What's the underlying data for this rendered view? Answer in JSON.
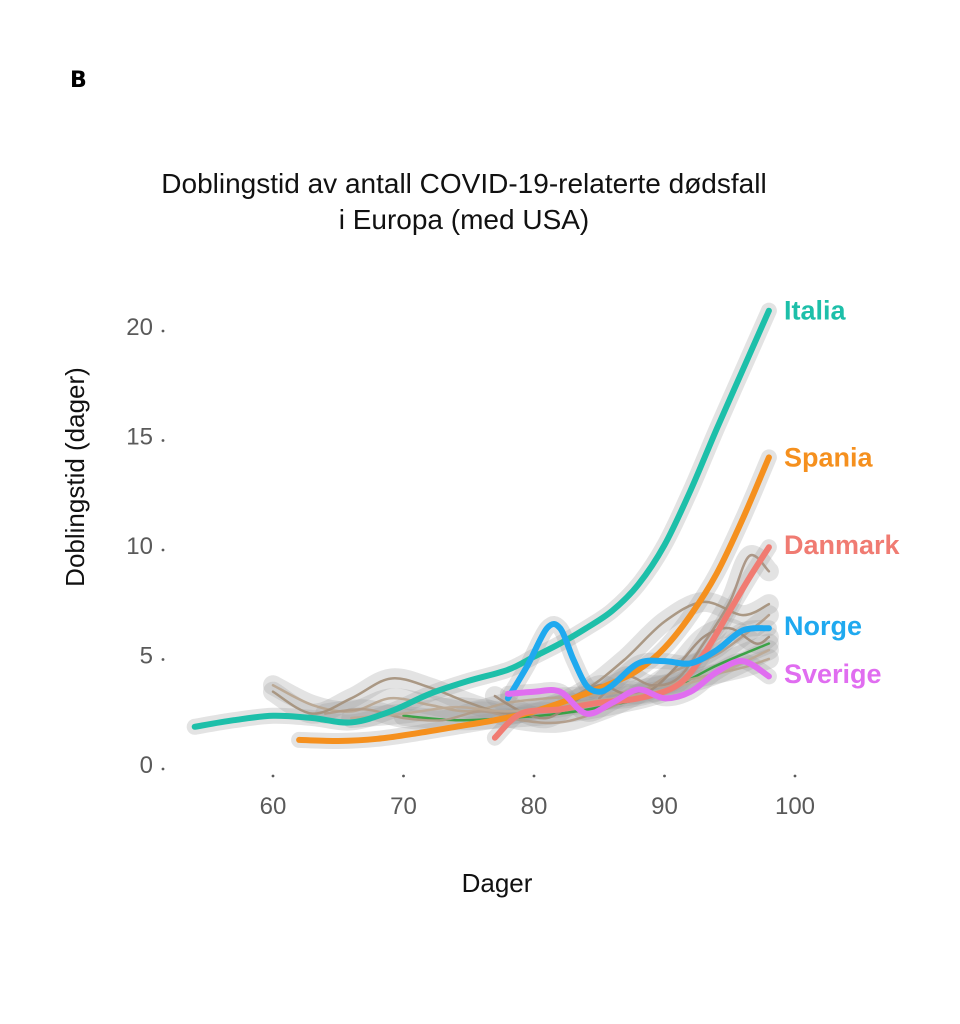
{
  "panel_label": "B",
  "chart_data": {
    "type": "line",
    "title_lines": [
      "Doblingstid av antall COVID-19-relaterte dødsfall",
      "i Europa (med USA)"
    ],
    "xlabel": "Dager",
    "ylabel": "Doblingstid (dager)",
    "xlim": [
      53,
      100
    ],
    "ylim": [
      0,
      21
    ],
    "x_ticks": [
      60,
      70,
      80,
      90,
      100
    ],
    "y_ticks": [
      0,
      5,
      10,
      15,
      20
    ],
    "x_tick_labels": [
      "60",
      "70",
      "80",
      "90",
      "100"
    ],
    "y_tick_labels": [
      "0",
      "5",
      "10",
      "15",
      "20"
    ],
    "grid": false,
    "series": [
      {
        "name": "Italia",
        "color": "#1dbfa9",
        "highlight": true,
        "x": [
          54,
          57,
          60,
          63,
          66,
          69,
          72,
          75,
          78,
          80,
          82,
          84,
          86,
          88,
          90,
          92,
          94,
          96,
          98
        ],
        "y": [
          1.7,
          2.0,
          2.2,
          2.1,
          1.9,
          2.4,
          3.2,
          3.8,
          4.3,
          4.9,
          5.5,
          6.2,
          7.0,
          8.2,
          10.0,
          12.5,
          15.3,
          18.0,
          20.7
        ]
      },
      {
        "name": "Spania",
        "color": "#f5901e",
        "highlight": true,
        "x": [
          62,
          65,
          68,
          71,
          74,
          77,
          80,
          83,
          86,
          88,
          90,
          92,
          94,
          96,
          98
        ],
        "y": [
          1.1,
          1.05,
          1.15,
          1.4,
          1.7,
          2.0,
          2.4,
          3.0,
          3.7,
          4.3,
          5.3,
          6.8,
          8.7,
          11.2,
          14.0
        ]
      },
      {
        "name": "Danmark",
        "color": "#f07b72",
        "highlight": true,
        "x": [
          77,
          79,
          82,
          85,
          88,
          91,
          93,
          95,
          96.5,
          98
        ],
        "y": [
          1.2,
          2.3,
          2.5,
          2.8,
          3.0,
          3.6,
          5.0,
          7.0,
          8.5,
          9.9
        ]
      },
      {
        "name": "Norge",
        "color": "#1fa9ef",
        "highlight": true,
        "x": [
          78,
          79.5,
          81,
          82,
          83,
          84,
          85,
          86,
          88,
          90,
          92,
          94,
          96,
          98
        ],
        "y": [
          3.0,
          4.5,
          6.2,
          6.2,
          4.8,
          3.6,
          3.3,
          3.6,
          4.6,
          4.7,
          4.6,
          5.2,
          6.1,
          6.2
        ]
      },
      {
        "name": "Sverige",
        "color": "#e06df0",
        "highlight": true,
        "x": [
          78,
          80,
          82,
          84,
          86,
          88,
          90,
          92,
          94,
          96,
          98
        ],
        "y": [
          3.2,
          3.3,
          3.3,
          2.3,
          2.8,
          3.4,
          3.0,
          3.3,
          4.2,
          4.7,
          4.0
        ]
      },
      {
        "name": "",
        "color": "#2e9e3a",
        "highlight": false,
        "x": [
          70,
          74,
          78,
          82,
          86,
          90,
          94,
          98
        ],
        "y": [
          2.2,
          2.0,
          2.1,
          2.3,
          2.7,
          3.3,
          4.5,
          5.5
        ]
      },
      {
        "name": "",
        "color": "#b8a48e",
        "highlight": false,
        "x": [
          60,
          63,
          66,
          69,
          72,
          75,
          78,
          81,
          84,
          87,
          90,
          93,
          96,
          98
        ],
        "y": [
          3.6,
          2.7,
          2.4,
          3.0,
          2.7,
          2.4,
          2.8,
          3.0,
          3.1,
          3.3,
          3.6,
          4.0,
          4.4,
          4.8
        ]
      },
      {
        "name": "",
        "color": "#a38f79",
        "highlight": false,
        "x": [
          60,
          63,
          66,
          69,
          72,
          75,
          78,
          81,
          84,
          87,
          90,
          93,
          96,
          98
        ],
        "y": [
          3.3,
          2.3,
          3.0,
          3.9,
          3.5,
          2.8,
          2.3,
          2.6,
          3.4,
          4.8,
          6.5,
          7.4,
          6.8,
          7.3
        ]
      },
      {
        "name": "",
        "color": "#b09a86",
        "highlight": false,
        "x": [
          64,
          67,
          70,
          73,
          76,
          79,
          82,
          85,
          88,
          91,
          94,
          97,
          98
        ],
        "y": [
          2.3,
          2.5,
          2.1,
          2.0,
          2.4,
          2.0,
          1.9,
          2.4,
          3.2,
          4.3,
          5.0,
          6.3,
          6.8
        ]
      },
      {
        "name": "",
        "color": "#9f8a77",
        "highlight": false,
        "x": [
          77,
          79,
          81,
          83,
          85,
          87,
          89,
          91,
          93,
          95,
          97,
          98
        ],
        "y": [
          3.1,
          2.4,
          2.1,
          2.8,
          3.6,
          3.2,
          3.4,
          4.5,
          5.8,
          6.2,
          5.5,
          5.8
        ]
      },
      {
        "name": "",
        "color": "#a58f7d",
        "highlight": false,
        "x": [
          85,
          87,
          89,
          91,
          93,
          95,
          96.5,
          98
        ],
        "y": [
          3.0,
          4.0,
          3.6,
          3.9,
          5.5,
          7.4,
          9.5,
          8.8
        ]
      },
      {
        "name": "",
        "color": "#bca893",
        "highlight": false,
        "x": [
          66,
          70,
          74,
          78,
          82,
          86,
          90,
          94,
          98
        ],
        "y": [
          2.1,
          2.3,
          2.6,
          2.4,
          2.7,
          3.0,
          3.4,
          4.1,
          5.2
        ]
      }
    ]
  }
}
